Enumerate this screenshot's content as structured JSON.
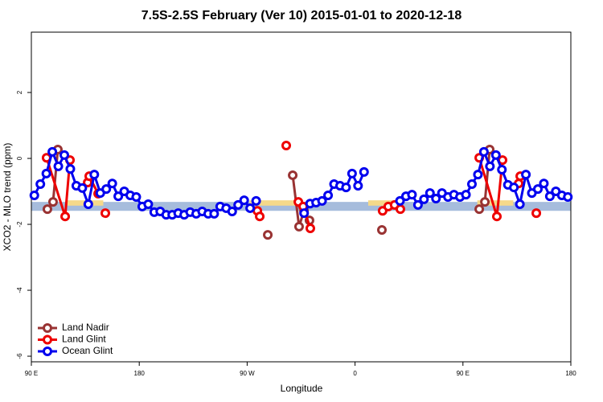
{
  "chart_data": {
    "type": "line",
    "title": "7.5S-2.5S February (Ver 10)   2015-01-01 to 2020-12-18",
    "x_label": "Longitude",
    "y_label": "XCO2 - MLO trend (ppm)",
    "xlim": [
      90,
      540
    ],
    "ylim": [
      -6.17,
      3.83
    ],
    "xticks": [
      {
        "value": 90,
        "label": "90 E"
      },
      180,
      {
        "value": 270,
        "label": "90 W"
      },
      {
        "value": 360,
        "label": "0"
      },
      {
        "value": 450,
        "label": "90 E"
      },
      {
        "value": 540,
        "label": "180"
      }
    ],
    "yticks": [
      2,
      0,
      -2,
      -4,
      -6
    ],
    "legend": "bottom-left",
    "band": {
      "color": "#a6bcdc",
      "y": [
        -1.59,
        -1.32
      ]
    },
    "land": {
      "color": "#f5d98a",
      "x": [
        [
          120,
          150
        ],
        [
          272,
          316
        ],
        [
          371,
          398
        ],
        [
          462,
          492
        ]
      ]
    },
    "series": [
      {
        "name": "Land Nadir",
        "color": "#993333",
        "x": [
          103.4,
          108.1,
          112.1,
          null,
          287.2,
          null,
          308,
          313.3,
          317.4,
          322,
          null,
          382.4,
          null,
          463.6,
          468.3,
          472.3
        ],
        "values": [
          -1.54,
          -1.32,
          0.27,
          null,
          -2.32,
          null,
          -0.51,
          -2.07,
          -1.59,
          -1.88,
          null,
          -2.17,
          null,
          -1.54,
          -1.32,
          0.27
        ]
      },
      {
        "name": "Land Glint",
        "color": "#ee0000",
        "x": [
          102.7,
          118.2,
          122.2,
          null,
          137,
          138.3,
          145.7,
          null,
          151.7,
          null,
          278.5,
          280.5,
          null,
          302.6,
          null,
          312.7,
          316.7,
          322.7,
          null,
          383,
          387.7,
          393,
          397.8,
          null,
          463.6,
          478.3,
          483,
          null,
          496.5,
          497.8,
          null,
          511.2
        ],
        "values": [
          0.02,
          -1.76,
          -0.05,
          null,
          -0.73,
          -0.54,
          -1.07,
          null,
          -1.66,
          null,
          -1.59,
          -1.76,
          null,
          0.39,
          null,
          -1.32,
          -1.46,
          -2.12,
          null,
          -1.59,
          -1.46,
          -1.41,
          -1.54,
          null,
          0.02,
          -1.76,
          -0.05,
          null,
          -0.76,
          -0.54,
          null,
          -1.66
        ]
      },
      {
        "name": "Ocean Glint",
        "color": "#0000ee",
        "x": [
          92.5,
          97.5,
          102.5,
          107.5,
          112.5,
          117.5,
          122.5,
          127.5,
          132.5,
          137.5,
          142.5,
          147.5,
          152.5,
          157.5,
          162.5,
          167.5,
          172.5,
          177.5,
          182.5,
          187.5,
          192.5,
          197.5,
          202.5,
          207.5,
          212.5,
          217.5,
          222.5,
          227.5,
          232.5,
          237.5,
          242.5,
          247.5,
          252.5,
          257.5,
          262.5,
          267.5,
          272.5,
          277.5,
          null,
          317.5,
          322.5,
          327.5,
          332.5,
          337.5,
          342.5,
          347.5,
          352.5,
          357.5,
          362.5,
          367.5,
          null,
          397.5,
          402.5,
          407.5,
          412.5,
          417.5,
          422.5,
          427.5,
          432.5,
          437.5,
          442.5,
          447.5,
          452.5,
          457.5,
          462.5,
          467.5,
          472.5,
          477.5,
          482.5,
          487.5,
          492.5,
          497.5,
          502.5,
          507.5,
          512.5,
          517.5,
          522.5,
          527.5,
          532.5,
          537.5
        ],
        "values": [
          -1.12,
          -0.78,
          -0.46,
          0.2,
          -0.24,
          0.1,
          -0.32,
          -0.83,
          -0.9,
          -1.39,
          -0.49,
          -1.05,
          -0.93,
          -0.76,
          -1.15,
          -1.0,
          -1.12,
          -1.17,
          -1.46,
          -1.39,
          -1.63,
          -1.61,
          -1.71,
          -1.71,
          -1.66,
          -1.71,
          -1.63,
          -1.68,
          -1.61,
          -1.68,
          -1.68,
          -1.46,
          -1.51,
          -1.61,
          -1.41,
          -1.27,
          -1.51,
          -1.29,
          null,
          -1.66,
          -1.37,
          -1.34,
          -1.29,
          -1.12,
          -0.78,
          -0.83,
          -0.88,
          -0.46,
          -0.83,
          -0.41,
          null,
          -1.29,
          -1.15,
          -1.1,
          -1.41,
          -1.24,
          -1.05,
          -1.22,
          -1.05,
          -1.17,
          -1.1,
          -1.17,
          -1.1,
          -0.78,
          -0.49,
          0.2,
          -0.24,
          0.1,
          -0.34,
          -0.8,
          -0.88,
          -1.39,
          -0.49,
          -1.05,
          -0.93,
          -0.76,
          -1.15,
          -1.0,
          -1.12,
          -1.17
        ]
      }
    ]
  }
}
